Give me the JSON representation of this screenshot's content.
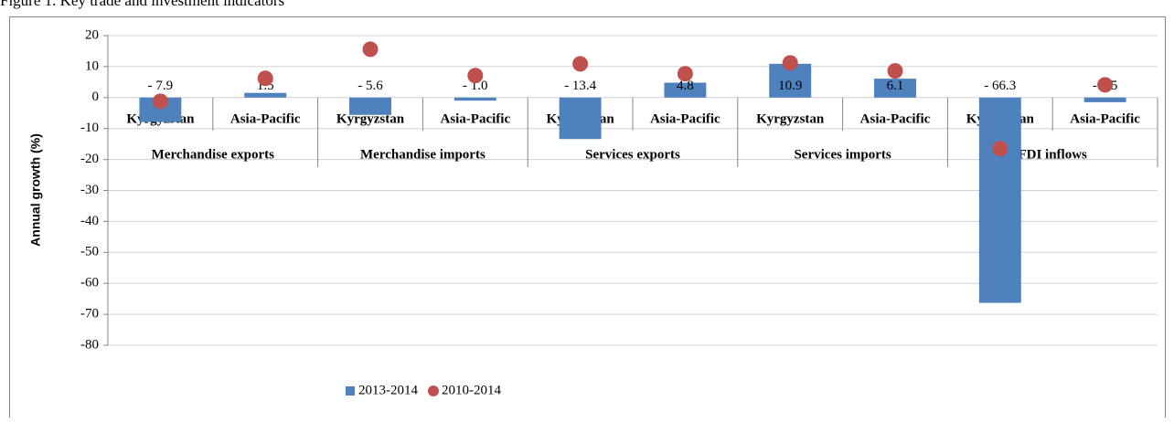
{
  "chart_data": {
    "type": "bar",
    "title": "Figure 1. Key trade and investment indicators",
    "ylabel": "Annual growth (%)",
    "groups": [
      "Merchandise exports",
      "Merchandise imports",
      "Services exports",
      "Services imports",
      "FDI inflows"
    ],
    "categories": [
      "Kyrgyzstan",
      "Asia-Pacific",
      "Kyrgyzstan",
      "Asia-Pacific",
      "Kyrgyzstan",
      "Asia-Pacific",
      "Kyrgyzstan",
      "Asia-Pacific",
      "Kyrgyzstan",
      "Asia-Pacific"
    ],
    "series": [
      {
        "name": "2013-2014",
        "type": "bar",
        "color": "#4f81bd",
        "values": [
          -7.9,
          1.5,
          -5.6,
          -1.0,
          -13.4,
          4.8,
          10.9,
          6.1,
          -66.3,
          -1.5
        ],
        "value_labels": [
          "- 7.9",
          "1.5",
          "- 5.6",
          "- 1.0",
          "- 13.4",
          "4.8",
          "10.9",
          "6.1",
          "- 66.3",
          "- 1.5"
        ]
      },
      {
        "name": "2010-2014",
        "type": "scatter",
        "color": "#c0504d",
        "values": [
          -1.2,
          6.2,
          15.6,
          7.1,
          10.9,
          7.7,
          11.2,
          8.6,
          -16.5,
          4.1
        ]
      }
    ],
    "ylim": [
      -80,
      20
    ],
    "yticks": [
      -80,
      -70,
      -60,
      -50,
      -40,
      -30,
      -20,
      -10,
      0,
      10,
      20
    ],
    "grid": true,
    "legend": "bottom"
  }
}
